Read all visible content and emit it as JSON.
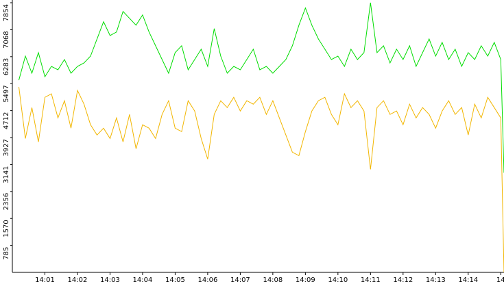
{
  "chart_data": {
    "type": "line",
    "x": [
      0.2,
      0.4,
      0.6,
      0.8,
      1.0,
      1.2,
      1.4,
      1.6,
      1.8,
      2.0,
      2.2,
      2.4,
      2.6,
      2.8,
      3.0,
      3.2,
      3.4,
      3.6,
      3.8,
      4.0,
      4.2,
      4.4,
      4.6,
      4.8,
      5.0,
      5.2,
      5.4,
      5.6,
      5.8,
      6.0,
      6.2,
      6.4,
      6.6,
      6.8,
      7.0,
      7.2,
      7.4,
      7.6,
      7.8,
      8.0,
      8.2,
      8.4,
      8.6,
      8.8,
      9.0,
      9.2,
      9.4,
      9.6,
      9.8,
      10.0,
      10.2,
      10.4,
      10.6,
      10.8,
      11.0,
      11.2,
      11.4,
      11.6,
      11.8,
      12.0,
      12.2,
      12.4,
      12.6,
      12.8,
      13.0,
      13.2,
      13.4,
      13.6,
      13.8,
      14.0,
      14.2,
      14.4,
      14.6,
      14.8,
      15.0,
      15.1
    ],
    "series": [
      {
        "color": "#00dd00",
        "values": [
          5600,
          6300,
          5800,
          6400,
          5700,
          6000,
          5900,
          6200,
          5800,
          6000,
          6100,
          6300,
          6800,
          7300,
          6900,
          7000,
          7600,
          7400,
          7200,
          7500,
          7000,
          6600,
          6200,
          5800,
          6400,
          6600,
          5900,
          6200,
          6500,
          6000,
          7100,
          6300,
          5800,
          6000,
          5900,
          6200,
          6500,
          5900,
          6000,
          5800,
          6000,
          6200,
          6600,
          7200,
          7700,
          7200,
          6800,
          6500,
          6200,
          6300,
          6000,
          6500,
          6200,
          6400,
          7854,
          6400,
          6600,
          6100,
          6500,
          6200,
          6600,
          6000,
          6400,
          6800,
          6300,
          6700,
          6200,
          6500,
          6000,
          6400,
          6200,
          6600,
          6300,
          6700,
          6200,
          2900
        ]
      },
      {
        "color": "#f2b600",
        "values": [
          5400,
          3900,
          4800,
          3800,
          5100,
          5200,
          4500,
          5000,
          4200,
          5300,
          4900,
          4300,
          4000,
          4200,
          3900,
          4500,
          3800,
          4600,
          3600,
          4300,
          4200,
          3900,
          4600,
          5000,
          4200,
          4100,
          5000,
          4700,
          3900,
          3300,
          4600,
          5000,
          4800,
          5100,
          4700,
          5000,
          4900,
          5100,
          4600,
          5000,
          4500,
          4000,
          3500,
          3400,
          4100,
          4700,
          5000,
          5100,
          4600,
          4300,
          5200,
          4800,
          5000,
          4700,
          3000,
          4800,
          5000,
          4600,
          4700,
          4300,
          4900,
          4500,
          4800,
          4600,
          4200,
          4700,
          5000,
          4600,
          4800,
          4000,
          4900,
          4500,
          5100,
          4800,
          4500,
          0
        ]
      }
    ],
    "xlim": [
      0,
      15.1
    ],
    "xticks": [
      {
        "value": 1,
        "label": "14:01"
      },
      {
        "value": 2,
        "label": "14:02"
      },
      {
        "value": 3,
        "label": "14:03"
      },
      {
        "value": 4,
        "label": "14:04"
      },
      {
        "value": 5,
        "label": "14:05"
      },
      {
        "value": 6,
        "label": "14:06"
      },
      {
        "value": 7,
        "label": "14:07"
      },
      {
        "value": 8,
        "label": "14:08"
      },
      {
        "value": 9,
        "label": "14:09"
      },
      {
        "value": 10,
        "label": "14:10"
      },
      {
        "value": 11,
        "label": "14:11"
      },
      {
        "value": 12,
        "label": "14:12"
      },
      {
        "value": 13,
        "label": "14:13"
      },
      {
        "value": 14,
        "label": "14:14"
      },
      {
        "value": 15,
        "label": "14"
      }
    ],
    "ylim": [
      0,
      7854
    ],
    "yticks": [
      785,
      1570,
      2356,
      3141,
      3927,
      4712,
      5497,
      6283,
      7068,
      7854
    ]
  }
}
